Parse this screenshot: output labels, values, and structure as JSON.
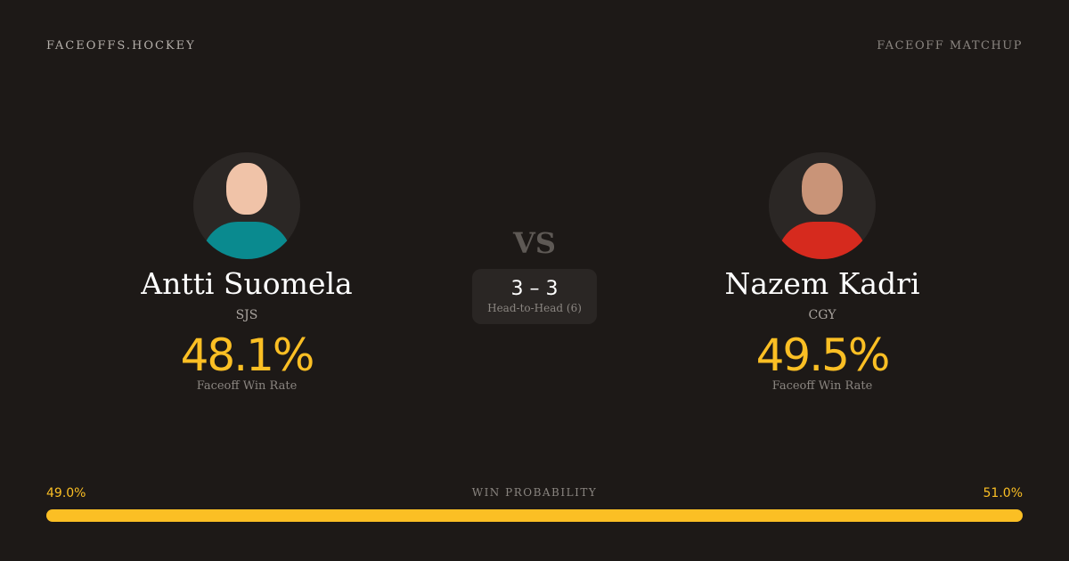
{
  "header": {
    "brand": "FACEOFFS.HOCKEY",
    "page_label": "FACEOFF MATCHUP"
  },
  "players": [
    {
      "name": "Antti Suomela",
      "team": "SJS",
      "win_rate": "48.1%",
      "win_rate_label": "Faceoff Win Rate",
      "jersey_color": "#0a8a8f"
    },
    {
      "name": "Nazem Kadri",
      "team": "CGY",
      "win_rate": "49.5%",
      "win_rate_label": "Faceoff Win Rate",
      "jersey_color": "#d62a1e"
    }
  ],
  "vs": "VS",
  "head_to_head": {
    "score": "3 – 3",
    "label": "Head-to-Head (6)"
  },
  "win_probability": {
    "title": "WIN PROBABILITY",
    "left": "49.0%",
    "right": "51.0%",
    "left_value": 49.0,
    "right_value": 51.0,
    "color": "#fbbf24"
  }
}
